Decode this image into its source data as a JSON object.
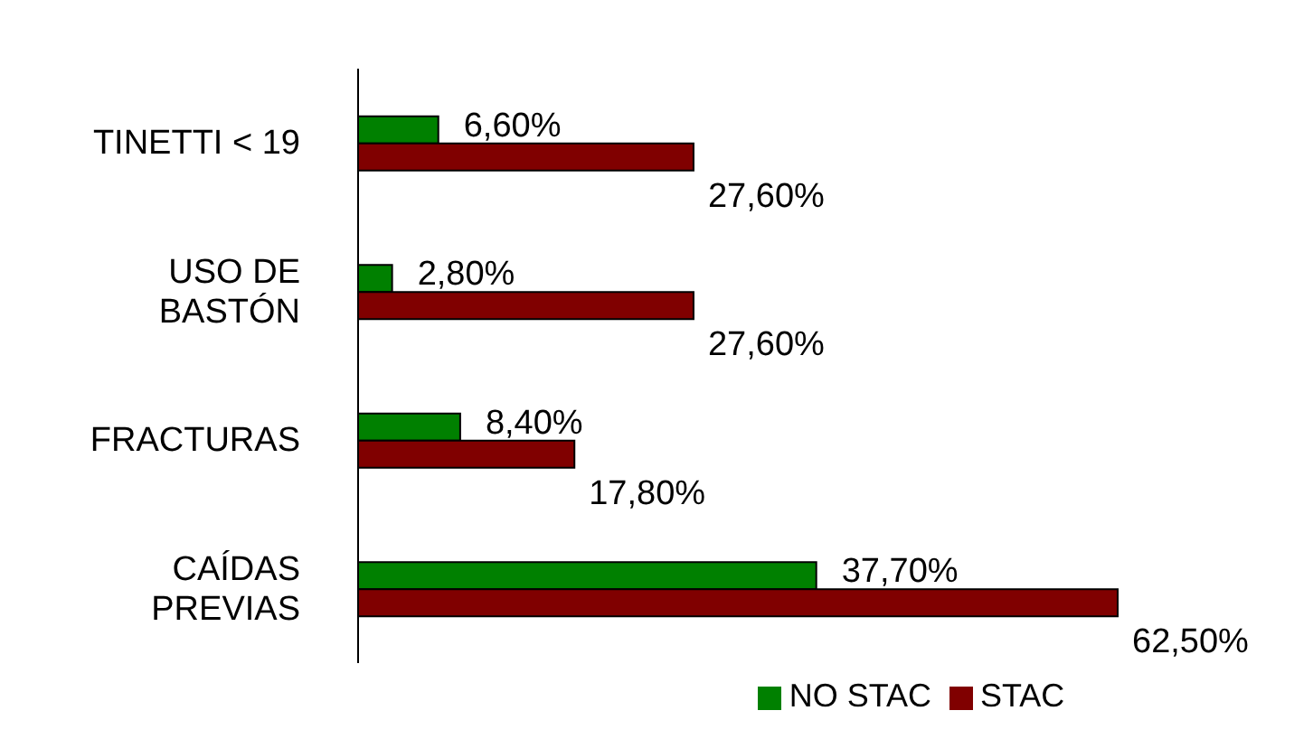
{
  "chart_data": {
    "type": "bar",
    "orientation": "horizontal",
    "categories": [
      "TINETTI < 19",
      "USO DE\nBASTÓN",
      "FRACTURAS",
      "CAÍDAS\nPREVIAS"
    ],
    "series": [
      {
        "name": "NO STAC",
        "color": "#008000",
        "values": [
          6.6,
          2.8,
          8.4,
          37.7
        ],
        "value_labels": [
          "6,60%",
          "2,80%",
          "8,40%",
          "37,70%"
        ]
      },
      {
        "name": "STAC",
        "color": "#800000",
        "values": [
          27.6,
          27.6,
          17.8,
          62.5
        ],
        "value_labels": [
          "27,60%",
          "27,60%",
          "17,80%",
          "62,50%"
        ]
      }
    ],
    "legend": "bottom"
  }
}
